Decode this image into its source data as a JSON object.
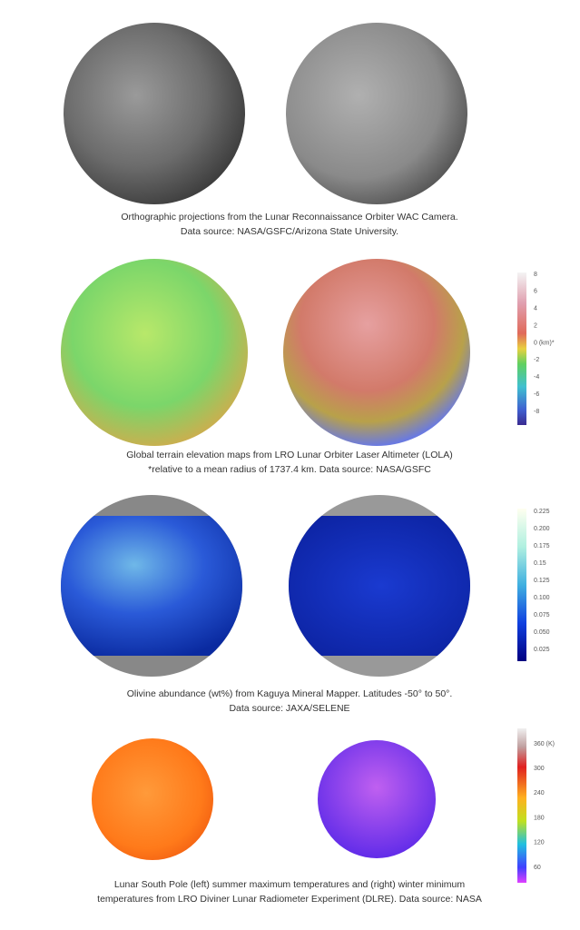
{
  "panels": [
    {
      "caption": [
        "Orthographic projections from the Lunar Reconnaissance Orbiter WAC Camera.",
        "Data source: NASA/GSFC/Arizona State University."
      ]
    },
    {
      "caption": [
        "Global terrain elevation maps  from LRO Lunar Orbiter Laser Altimeter (LOLA)",
        "*relative to a mean radius of 1737.4 km. Data source: NASA/GSFC"
      ],
      "colorbar": {
        "labels": [
          "8",
          "6",
          "4",
          "2",
          "0 (km)*",
          "-2",
          "-4",
          "-6",
          "-8"
        ]
      }
    },
    {
      "caption": [
        "Olivine abundance (wt%) from Kaguya Mineral Mapper. Latitudes -50° to 50°.",
        "Data source: JAXA/SELENE"
      ],
      "colorbar": {
        "labels": [
          "0.225",
          "0.200",
          "0.175",
          "0.15",
          "0.125",
          "0.100",
          "0.075",
          "0.050",
          "0.025"
        ]
      }
    },
    {
      "caption": [
        "Lunar South Pole (left) summer maximum temperatures and (right) winter minimum",
        "temperatures from LRO Diviner Lunar Radiometer Experiment (DLRE). Data source: NASA"
      ],
      "colorbar": {
        "labels": [
          "360 (K)",
          "300",
          "240",
          "180",
          "120",
          "60"
        ]
      }
    }
  ]
}
